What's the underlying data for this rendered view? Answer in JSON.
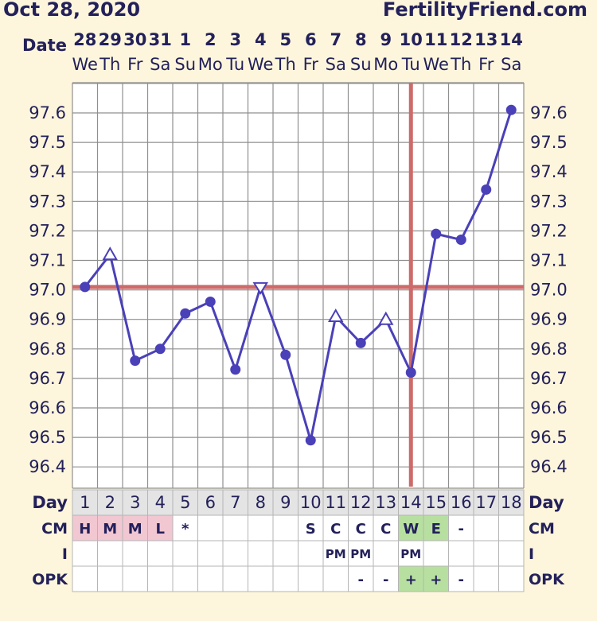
{
  "header": {
    "date": "Oct 28, 2020",
    "site": "FertilityFriend.com"
  },
  "colors": {
    "background": "#fdf6dc",
    "grid": "#8f8f8f",
    "line": "#4a40b8",
    "coverline": "#cd6a6a",
    "ovulation": "#cd6a6a",
    "text": "#23205a",
    "cm_pink": "#f1c7d2",
    "cm_green": "#b7e0a0",
    "opk_green": "#b7e0a0",
    "row_header": "#e4e4e4"
  },
  "chart_data": {
    "type": "line",
    "title": "",
    "ylim": [
      96.3,
      97.7
    ],
    "y_ticks": [
      "97.6",
      "97.5",
      "97.4",
      "97.3",
      "97.2",
      "97.1",
      "97.0",
      "96.9",
      "96.8",
      "96.7",
      "96.6",
      "96.5",
      "96.4"
    ],
    "date_label": "Date",
    "dates": [
      "28",
      "29",
      "30",
      "31",
      "1",
      "2",
      "3",
      "4",
      "5",
      "6",
      "7",
      "8",
      "9",
      "10",
      "11",
      "12",
      "13",
      "14"
    ],
    "weekdays": [
      "We",
      "Th",
      "Fr",
      "Sa",
      "Su",
      "Mo",
      "Tu",
      "We",
      "Th",
      "Fr",
      "Sa",
      "Su",
      "Mo",
      "Tu",
      "We",
      "Th",
      "Fr",
      "Sa"
    ],
    "series": [
      {
        "values": [
          97.01,
          97.12,
          96.76,
          96.8,
          96.92,
          96.96,
          96.73,
          97.01,
          96.78,
          96.49,
          96.91,
          96.82,
          96.9,
          96.72,
          97.19,
          97.17,
          97.34,
          97.61
        ],
        "markers": [
          "dot",
          "triangle-up",
          "dot",
          "dot",
          "dot",
          "dot",
          "dot",
          "triangle-down",
          "dot",
          "dot",
          "triangle-up",
          "dot",
          "triangle-up",
          "dot",
          "dot",
          "dot",
          "dot",
          "dot"
        ]
      }
    ],
    "coverline": 97.01,
    "ovulation_day": 14,
    "grid": true,
    "rows": {
      "day": {
        "label": "Day",
        "values": [
          "1",
          "2",
          "3",
          "4",
          "5",
          "6",
          "7",
          "8",
          "9",
          "10",
          "11",
          "12",
          "13",
          "14",
          "15",
          "16",
          "17",
          "18"
        ]
      },
      "cm": {
        "label": "CM",
        "values": [
          "H",
          "M",
          "M",
          "L",
          "*",
          "",
          "",
          "",
          "",
          "S",
          "C",
          "C",
          "C",
          "W",
          "E",
          "-",
          "",
          ""
        ],
        "fills": [
          "pink",
          "pink",
          "pink",
          "pink",
          "",
          "",
          "",
          "",
          "",
          "",
          "",
          "",
          "",
          "green",
          "green",
          "",
          "",
          ""
        ]
      },
      "i": {
        "label": "I",
        "values": [
          "",
          "",
          "",
          "",
          "",
          "",
          "",
          "",
          "",
          "",
          "PM",
          "PM",
          "",
          "PM",
          "",
          "",
          "",
          ""
        ]
      },
      "opk": {
        "label": "OPK",
        "values": [
          "",
          "",
          "",
          "",
          "",
          "",
          "",
          "",
          "",
          "",
          "",
          "-",
          "-",
          "+",
          "+",
          "-",
          "",
          ""
        ],
        "fills": [
          "",
          "",
          "",
          "",
          "",
          "",
          "",
          "",
          "",
          "",
          "",
          "",
          "",
          "green",
          "green",
          "",
          "",
          ""
        ]
      }
    }
  }
}
